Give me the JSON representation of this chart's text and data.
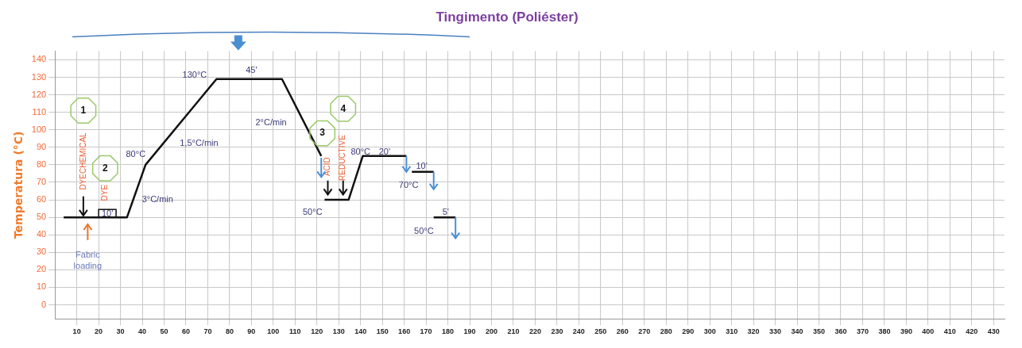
{
  "chart_data": {
    "type": "line",
    "title": "Tingimento (Poliéster)",
    "ylabel": "Temperatura (°C)",
    "xlim": [
      0,
      435
    ],
    "xticks": [
      10,
      20,
      30,
      40,
      50,
      60,
      70,
      80,
      90,
      100,
      110,
      120,
      130,
      140,
      150,
      160,
      170,
      180,
      190,
      200,
      210,
      220,
      230,
      240,
      250,
      260,
      270,
      280,
      290,
      300,
      310,
      320,
      330,
      340,
      350,
      360,
      370,
      380,
      390,
      400,
      410,
      420,
      430
    ],
    "ylim": [
      -8,
      145
    ],
    "yticks": [
      0,
      10,
      20,
      30,
      40,
      50,
      60,
      70,
      80,
      90,
      100,
      110,
      120,
      130,
      140
    ],
    "grid": true,
    "legend": false,
    "marker": "none",
    "line_style": "solid",
    "series": [
      {
        "color": "#111111",
        "x": [
          4,
          33,
          41.5,
          74,
          104,
          122
        ],
        "values": [
          50,
          50,
          80,
          129,
          129,
          85
        ]
      },
      {
        "color": "#111111",
        "x": [
          123.5,
          134.5,
          141,
          161
        ],
        "values": [
          60,
          60,
          85,
          85
        ]
      },
      {
        "color": "#111111",
        "x": [
          163.5,
          173.5
        ],
        "values": [
          76,
          76
        ]
      },
      {
        "color": "#111111",
        "x": [
          173.5,
          183.5
        ],
        "values": [
          50,
          50
        ]
      }
    ],
    "annotations": [
      "130°C",
      "45'",
      "2°C/min",
      "1,5°C/min",
      "80°C",
      "3°C/min",
      "10'",
      "50°C",
      "80°C",
      "20'",
      "10'",
      "70°C",
      "5'",
      "50°C",
      "Fabric loading",
      "1",
      "2",
      "3",
      "4",
      "DYECHEMICAL",
      "DYE",
      "ACID",
      "REDUCTIVE"
    ]
  }
}
